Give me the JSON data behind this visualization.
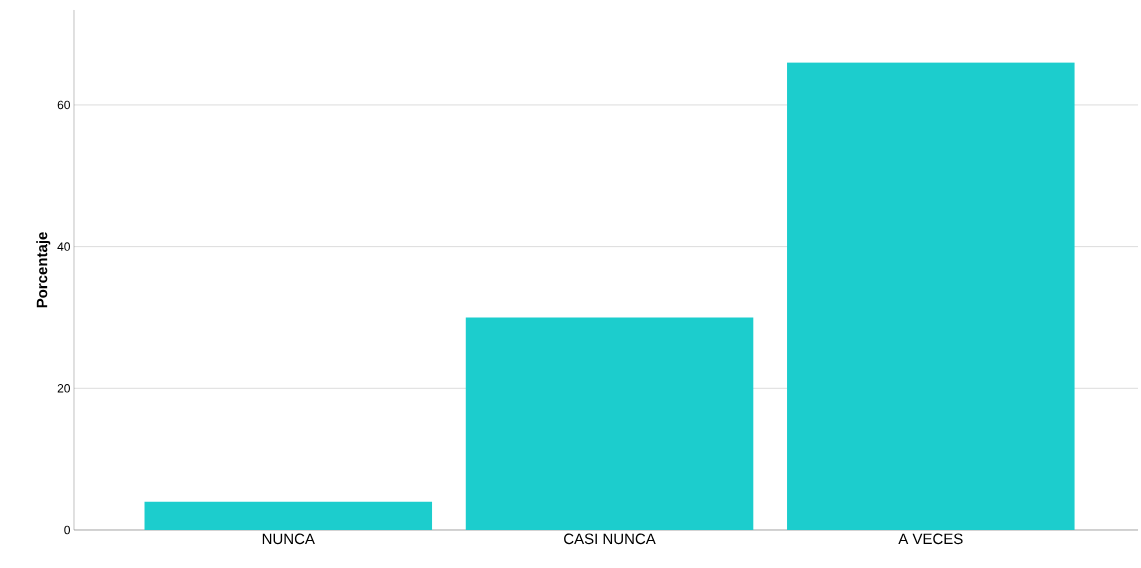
{
  "chart_data": {
    "type": "bar",
    "ylabel": "Porcentaje",
    "categories": [
      "NUNCA",
      "CASI NUNCA",
      "A VECES"
    ],
    "values": [
      4,
      30,
      66
    ],
    "color": "#1ccdcd",
    "ylim": [
      0,
      73.4
    ],
    "yticks": [
      0,
      20,
      40,
      60
    ],
    "grid": "y"
  }
}
